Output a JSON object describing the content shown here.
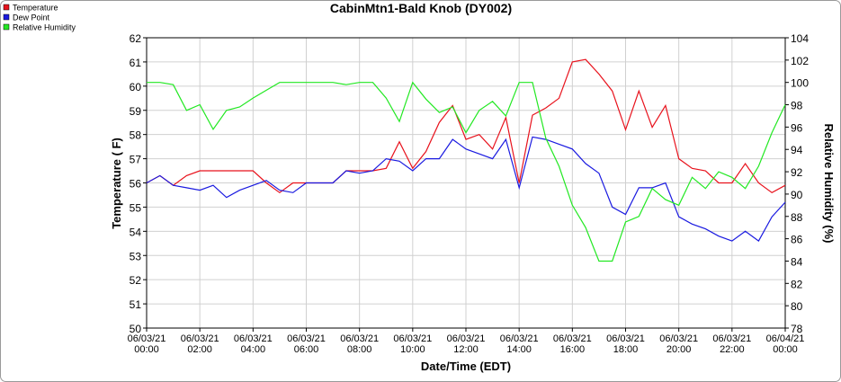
{
  "chart_data": {
    "type": "line",
    "title": "CabinMtn1-Bald Knob (DY002)",
    "xlabel": "Date/Time (EDT)",
    "ylabel": "Temperature ( F)",
    "y2label": "Relative Humidity (%)",
    "x": [
      0,
      0.5,
      1,
      1.5,
      2,
      2.5,
      3,
      3.5,
      4,
      4.5,
      5,
      5.5,
      6,
      6.5,
      7,
      7.5,
      8,
      8.5,
      9,
      9.5,
      10,
      10.5,
      11,
      11.5,
      12,
      12.5,
      13,
      13.5,
      14,
      14.5,
      15,
      15.5,
      16,
      16.5,
      17,
      17.5,
      18,
      18.5,
      19,
      19.5,
      20,
      20.5,
      21,
      21.5,
      22,
      22.5,
      23,
      23.5,
      24
    ],
    "xlim": [
      0,
      24
    ],
    "xticks": [
      {
        "value": 0,
        "label": "06/03/21\n00:00"
      },
      {
        "value": 2,
        "label": "06/03/21\n02:00"
      },
      {
        "value": 4,
        "label": "06/03/21\n04:00"
      },
      {
        "value": 6,
        "label": "06/03/21\n06:00"
      },
      {
        "value": 8,
        "label": "06/03/21\n08:00"
      },
      {
        "value": 10,
        "label": "06/03/21\n10:00"
      },
      {
        "value": 12,
        "label": "06/03/21\n12:00"
      },
      {
        "value": 14,
        "label": "06/03/21\n14:00"
      },
      {
        "value": 16,
        "label": "06/03/21\n16:00"
      },
      {
        "value": 18,
        "label": "06/03/21\n18:00"
      },
      {
        "value": 20,
        "label": "06/03/21\n20:00"
      },
      {
        "value": 22,
        "label": "06/03/21\n22:00"
      },
      {
        "value": 24,
        "label": "06/04/21\n00:00"
      }
    ],
    "ylim": [
      50,
      62
    ],
    "yticks": [
      50,
      51,
      52,
      53,
      54,
      55,
      56,
      57,
      58,
      59,
      60,
      61,
      62
    ],
    "y2lim": [
      78,
      104
    ],
    "y2ticks": [
      78,
      80,
      82,
      84,
      86,
      88,
      90,
      92,
      94,
      96,
      98,
      100,
      102,
      104
    ],
    "grid": true,
    "legend": "top-left",
    "series": [
      {
        "name": "Temperature",
        "color": "#e8121c",
        "values": [
          56.0,
          56.3,
          55.9,
          56.3,
          56.5,
          56.5,
          56.5,
          56.5,
          56.5,
          56.0,
          55.6,
          56.0,
          56.0,
          56.0,
          56.0,
          56.5,
          56.5,
          56.5,
          56.6,
          57.7,
          56.6,
          57.3,
          58.5,
          59.2,
          57.8,
          58.0,
          57.4,
          58.7,
          56.0,
          58.8,
          59.1,
          59.5,
          61.0,
          61.1,
          60.5,
          59.8,
          58.2,
          59.8,
          58.3,
          59.2,
          57.0,
          56.6,
          56.5,
          56.0,
          56.0,
          56.8,
          56.0,
          55.6,
          55.9
        ]
      },
      {
        "name": "Dew Point",
        "color": "#1a1ae0",
        "values": [
          56.0,
          56.3,
          55.9,
          55.8,
          55.7,
          55.9,
          55.4,
          55.7,
          55.9,
          56.1,
          55.7,
          55.6,
          56.0,
          56.0,
          56.0,
          56.5,
          56.4,
          56.5,
          57.0,
          56.9,
          56.5,
          57.0,
          57.0,
          57.8,
          57.4,
          57.2,
          57.0,
          57.8,
          55.8,
          57.9,
          57.8,
          57.6,
          57.4,
          56.8,
          56.4,
          55.0,
          54.7,
          55.8,
          55.8,
          56.0,
          54.6,
          54.3,
          54.1,
          53.8,
          53.6,
          54.0,
          53.6,
          54.6,
          55.2
        ]
      },
      {
        "name": "Relative Humidity",
        "color": "#22e822",
        "axis": "y2",
        "values": [
          100,
          100,
          99.8,
          97.5,
          98.0,
          95.8,
          97.5,
          97.8,
          98.6,
          99.3,
          100,
          100,
          100,
          100,
          100,
          99.8,
          100,
          100,
          98.6,
          96.5,
          100,
          98.5,
          97.3,
          97.8,
          95.5,
          97.5,
          98.3,
          97.0,
          100,
          100,
          95.0,
          92.5,
          89.0,
          87.0,
          84.0,
          84.0,
          87.5,
          88.0,
          90.5,
          89.5,
          89.0,
          91.5,
          90.5,
          92.0,
          91.5,
          90.5,
          92.5,
          95.5,
          98.0
        ]
      }
    ]
  }
}
